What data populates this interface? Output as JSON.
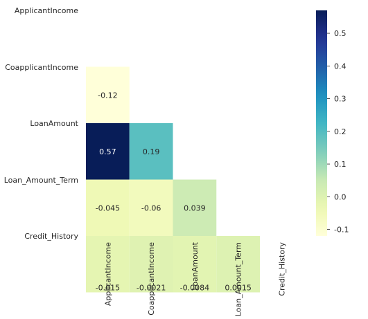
{
  "chart_data": {
    "type": "heatmap",
    "subtype": "lower-triangle correlation matrix",
    "colormap": "YlGnBu",
    "variables": [
      "ApplicantIncome",
      "CoapplicantIncome",
      "LoanAmount",
      "Loan_Amount_Term",
      "Credit_History"
    ],
    "cells": [
      {
        "row": 1,
        "col": 0,
        "value": -0.12,
        "label": "-0.12"
      },
      {
        "row": 2,
        "col": 0,
        "value": 0.57,
        "label": "0.57"
      },
      {
        "row": 2,
        "col": 1,
        "value": 0.19,
        "label": "0.19"
      },
      {
        "row": 3,
        "col": 0,
        "value": -0.045,
        "label": "-0.045"
      },
      {
        "row": 3,
        "col": 1,
        "value": -0.06,
        "label": "-0.06"
      },
      {
        "row": 3,
        "col": 2,
        "value": 0.039,
        "label": "0.039"
      },
      {
        "row": 4,
        "col": 0,
        "value": -0.015,
        "label": "-0.015"
      },
      {
        "row": 4,
        "col": 1,
        "value": -0.0021,
        "label": "-0.0021"
      },
      {
        "row": 4,
        "col": 2,
        "value": -0.0084,
        "label": "-0.0084"
      },
      {
        "row": 4,
        "col": 3,
        "value": 0.0015,
        "label": "0.0015"
      }
    ],
    "colorbar": {
      "range": [
        -0.12,
        0.57
      ],
      "ticks": [
        -0.1,
        0.0,
        0.1,
        0.2,
        0.3,
        0.4,
        0.5
      ],
      "tick_labels": [
        "-0.1",
        "0.0",
        "0.1",
        "0.2",
        "0.3",
        "0.4",
        "0.5"
      ]
    },
    "grid": false,
    "annotations": true
  }
}
